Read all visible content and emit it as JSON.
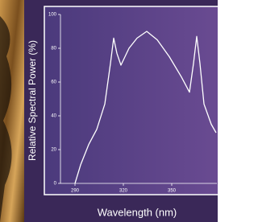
{
  "chart_data": {
    "type": "line",
    "x_label": "Wavelength (nm)",
    "y_label": "Relative Spectral Power (%)",
    "x": [
      290,
      293.5,
      298.5,
      303.5,
      308.5,
      312,
      314,
      316,
      318.5,
      323.5,
      328.5,
      334.5,
      341,
      348.5,
      356,
      361,
      363.5,
      365.5,
      367.5,
      370,
      374.5,
      377.5
    ],
    "values": [
      0,
      11,
      23,
      32,
      47,
      71,
      86,
      77,
      70,
      80,
      86,
      90,
      85,
      75,
      63,
      54,
      71,
      87,
      71,
      47,
      35,
      30
    ],
    "color": "#ffffff",
    "xlim": [
      281,
      378
    ],
    "xticks": [
      290,
      320,
      350
    ],
    "ylim": [
      0,
      100
    ],
    "yticks": [
      0,
      20,
      40,
      60,
      80,
      100
    ]
  }
}
